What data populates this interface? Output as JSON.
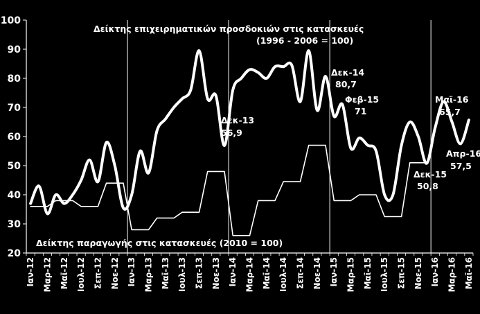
{
  "chart_data": {
    "type": "line",
    "title": "",
    "xlabel": "",
    "ylabel": "",
    "ylim": [
      20,
      100
    ],
    "yticks": [
      20,
      30,
      40,
      50,
      60,
      70,
      80,
      90,
      100
    ],
    "grid": false,
    "legend": "none",
    "colors": {
      "background": "#000000",
      "series": "#ffffff",
      "text": "#ffffff"
    },
    "categories": [
      "Ιαν-12",
      "Φεβ-12",
      "Μαρ-12",
      "Απρ-12",
      "Μαϊ-12",
      "Ιουν-12",
      "Ιουλ-12",
      "Αυγ-12",
      "Σεπ-12",
      "Οκτ-12",
      "Νοε-12",
      "Δεκ-12",
      "Ιαν-13",
      "Φεβ-13",
      "Μαρ-13",
      "Απρ-13",
      "Μαϊ-13",
      "Ιουν-13",
      "Ιουλ-13",
      "Αυγ-13",
      "Σεπ-13",
      "Οκτ-13",
      "Νοε-13",
      "Δεκ-13",
      "Ιαν-14",
      "Φεβ-14",
      "Μαρ-14",
      "Απρ-14",
      "Μαϊ-14",
      "Ιουν-14",
      "Ιουλ-14",
      "Αυγ-14",
      "Σεπ-14",
      "Οκτ-14",
      "Νοε-14",
      "Δεκ-14",
      "Ιαν-15",
      "Φεβ-15",
      "Μαρ-15",
      "Απρ-15",
      "Μαϊ-15",
      "Ιουν-15",
      "Ιουλ-15",
      "Αυγ-15",
      "Σεπ-15",
      "Οκτ-15",
      "Νοε-15",
      "Δεκ-15",
      "Ιαν-16",
      "Φεβ-16",
      "Μαρ-16",
      "Απρ-16",
      "Μαϊ-16"
    ],
    "xtick_labels": [
      "Ιαν-12",
      "Μαρ-12",
      "Μαϊ-12",
      "Ιουλ-12",
      "Σεπ-12",
      "Νοε-12",
      "Ιαν-13",
      "Μαρ-13",
      "Μαϊ-13",
      "Ιουλ-13",
      "Σεπ-13",
      "Νοε-13",
      "Ιαν-14",
      "Μαρ-14",
      "Μαϊ-14",
      "Ιουλ-14",
      "Σεπ-14",
      "Νοε-14",
      "Ιαν-15",
      "Μαρ-15",
      "Μαϊ-15",
      "Ιουλ-15",
      "Σεπ-15",
      "Νοε-15",
      "Ιαν-16",
      "Μαρ-16",
      "Μαϊ-16"
    ],
    "year_dividers": [
      "Ιαν-13",
      "Ιαν-14",
      "Ιαν-15",
      "Ιαν-16"
    ],
    "series": [
      {
        "name": "Δείκτης επιχειρηματικών προσδοκιών στις κατασκευές",
        "style": "thick-smooth",
        "values": [
          37,
          43,
          33.5,
          40,
          37,
          40,
          45,
          52,
          44.5,
          58,
          50,
          35.5,
          40,
          55,
          47.5,
          62,
          66,
          70,
          73,
          76,
          89.5,
          73,
          74,
          56.9,
          76,
          80,
          83,
          82,
          80,
          84,
          84,
          84.5,
          72,
          89.5,
          69,
          80.7,
          67,
          71,
          56,
          59.5,
          57,
          55,
          40,
          40,
          57,
          65,
          60,
          50.8,
          63,
          72,
          65,
          57.5,
          65.7
        ]
      },
      {
        "name": "Δείκτης παραγωγής στις κατασκευές",
        "style": "thin-step",
        "values": [
          36,
          36,
          36,
          38,
          38,
          38,
          36,
          36,
          36,
          44,
          44,
          44,
          28,
          28,
          28,
          32,
          32,
          32,
          34,
          34,
          34,
          48,
          48,
          48,
          26,
          26,
          26,
          38,
          38,
          38,
          44.5,
          44.5,
          44.5,
          57,
          57,
          57,
          38,
          38,
          38,
          40,
          40,
          40,
          32.5,
          32.5,
          32.5,
          51,
          51,
          51,
          null,
          null,
          null,
          null,
          null
        ]
      }
    ],
    "annotations": {
      "series1_title": "Δείκτης επιχειρηματικών προσδοκιών στις κατασκευές",
      "series1_subtitle": "(1996 - 2006 = 100)",
      "series2_title": "Δείκτης παραγωγής στις κατασκευές (2010 = 100)",
      "dec13_label": "Δεκ-13",
      "dec13_value": "56,9",
      "dec14_label": "Δεκ-14",
      "dec14_value": "80,7",
      "feb15_label": "Φεβ-15",
      "feb15_value": "71",
      "dec15_label": "Δεκ-15",
      "dec15_value": "50,8",
      "apr16_label": "Απρ-16",
      "apr16_value": "57,5",
      "may16_label": "Μαϊ-16",
      "may16_value": "65,7"
    }
  }
}
